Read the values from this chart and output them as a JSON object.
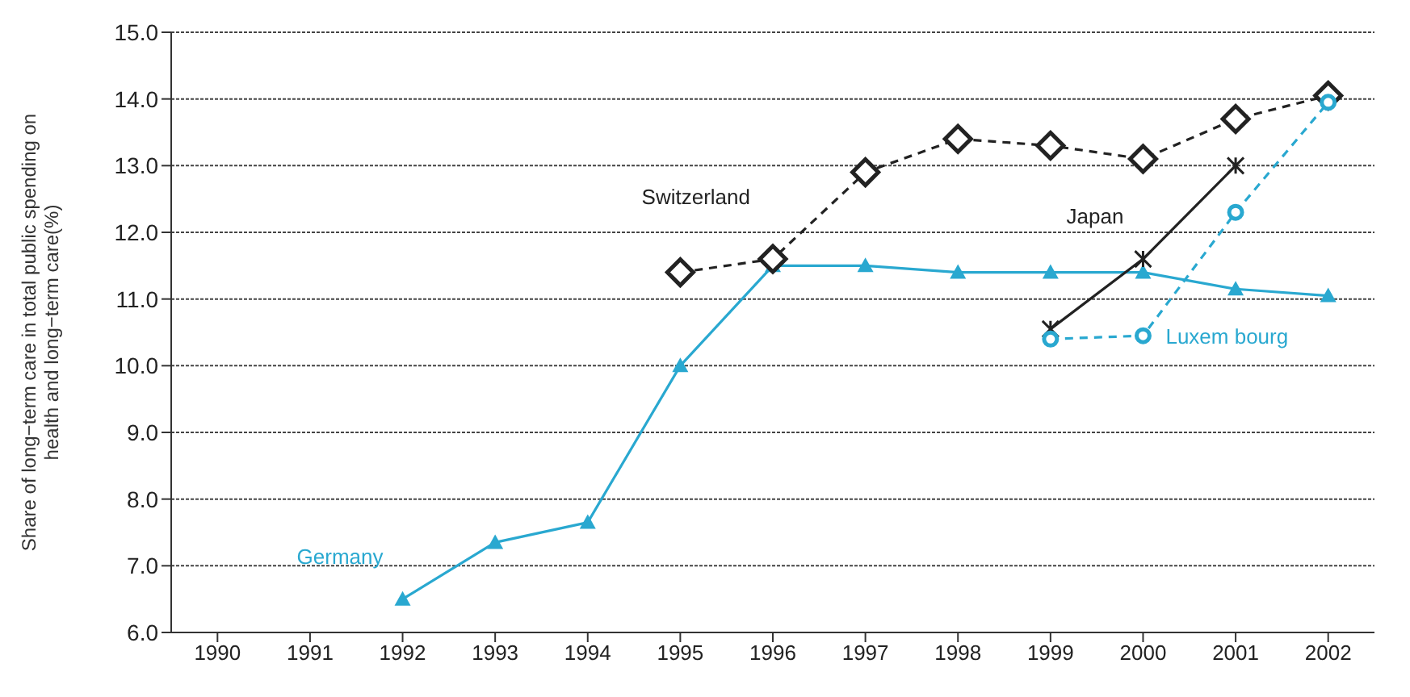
{
  "chart_data": {
    "type": "line",
    "ylabel": "Share of long−term care in total public spending on health and long−term care(%)",
    "categories": [
      "1990",
      "1991",
      "1992",
      "1993",
      "1994",
      "1995",
      "1996",
      "1997",
      "1998",
      "1999",
      "2000",
      "2001",
      "2002"
    ],
    "series": [
      {
        "name": "Germany",
        "color": "#29a8d0",
        "marker": "triangle",
        "line_style": "solid",
        "values": [
          null,
          null,
          6.5,
          7.35,
          7.65,
          10.0,
          11.5,
          11.5,
          11.4,
          11.4,
          11.4,
          11.15,
          11.05
        ]
      },
      {
        "name": "Switzerland",
        "color": "#222222",
        "marker": "diamond",
        "line_style": "dashed",
        "values": [
          null,
          null,
          null,
          null,
          null,
          11.4,
          11.6,
          12.9,
          13.4,
          13.3,
          13.1,
          13.7,
          14.05
        ]
      },
      {
        "name": "Japan",
        "color": "#222222",
        "marker": "cross",
        "line_style": "solid",
        "values": [
          null,
          null,
          null,
          null,
          null,
          null,
          null,
          null,
          null,
          10.55,
          11.6,
          13.0,
          null
        ]
      },
      {
        "name": "Luxem bourg",
        "color": "#29a8d0",
        "marker": "circle",
        "line_style": "dashed",
        "values": [
          null,
          null,
          null,
          null,
          null,
          null,
          null,
          null,
          null,
          10.4,
          10.45,
          12.3,
          13.95
        ]
      }
    ],
    "ylim": [
      6,
      15
    ],
    "yticks": [
      {
        "value": 6,
        "label": "6.0"
      },
      {
        "value": 7,
        "label": "7.0"
      },
      {
        "value": 8,
        "label": "8.0"
      },
      {
        "value": 9,
        "label": "9.0"
      },
      {
        "value": 10,
        "label": "10.0"
      },
      {
        "value": 11,
        "label": "11.0"
      },
      {
        "value": 12,
        "label": "12.0"
      },
      {
        "value": 13,
        "label": "13.0"
      },
      {
        "value": 14,
        "label": "14.0"
      },
      {
        "value": 15,
        "label": "15.0"
      }
    ],
    "grid": "y",
    "legend": false
  }
}
